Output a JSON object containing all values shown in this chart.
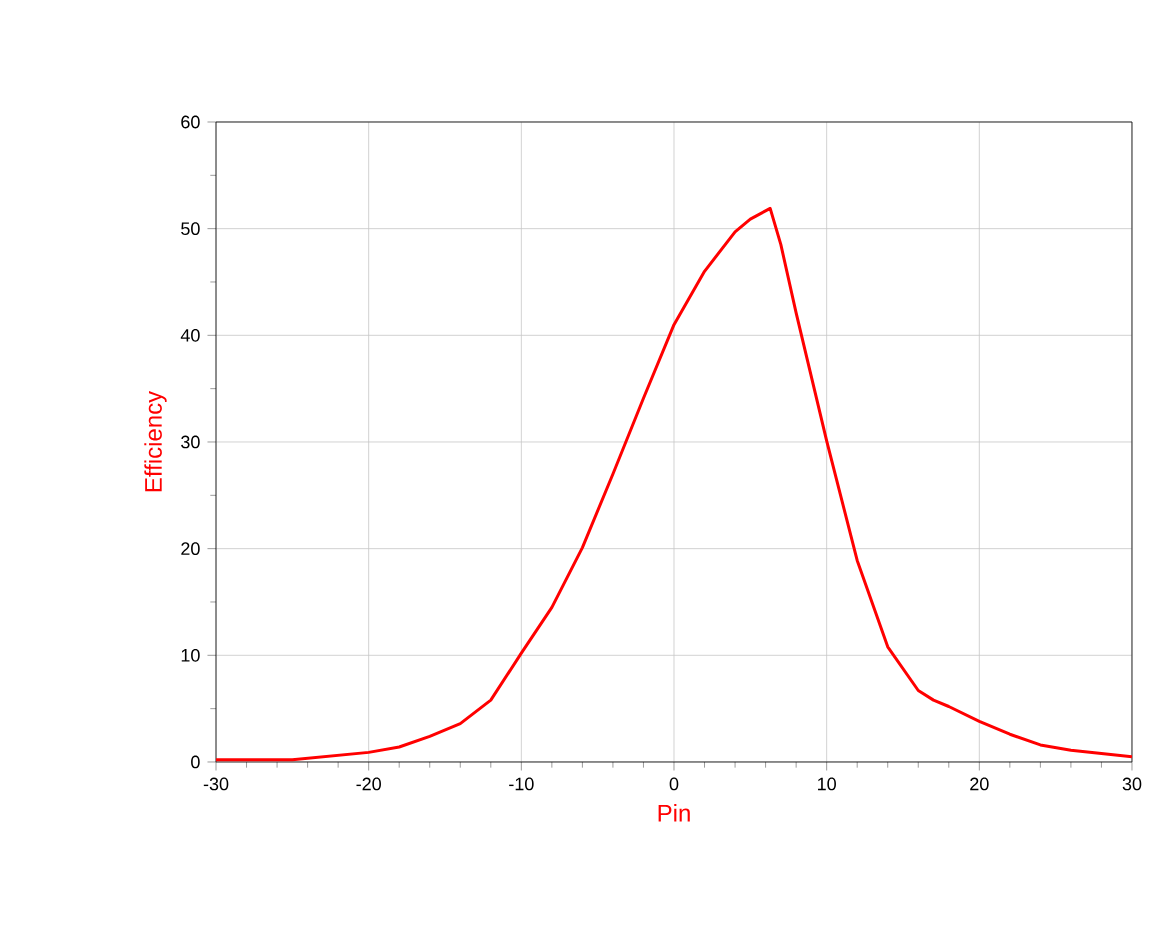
{
  "chart_data": {
    "type": "line",
    "xlabel": "Pin",
    "ylabel": "Efficiency",
    "xlim": [
      -30,
      30
    ],
    "ylim": [
      0,
      60
    ],
    "xticks": [
      -30,
      -20,
      -10,
      0,
      10,
      20,
      30
    ],
    "yticks": [
      0,
      10,
      20,
      30,
      40,
      50,
      60
    ],
    "grid": true,
    "x": [
      -30,
      -25,
      -20,
      -18,
      -16,
      -14,
      -12,
      -10,
      -8,
      -6,
      -4,
      -2,
      0,
      2,
      4,
      5,
      6.3,
      7,
      8,
      10,
      12,
      14,
      16,
      17,
      18,
      20,
      22,
      24,
      26,
      28,
      30
    ],
    "series": [
      {
        "color": "#ff0000",
        "values": [
          0.2,
          0.2,
          0.9,
          1.4,
          2.4,
          3.6,
          5.8,
          10.2,
          14.5,
          20.1,
          27,
          34.1,
          41,
          46,
          49.7,
          50.9,
          51.9,
          48.5,
          42.1,
          30.1,
          18.9,
          10.8,
          6.7,
          5.8,
          5.2,
          3.8,
          2.6,
          1.6,
          1.1,
          0.8,
          0.5
        ]
      }
    ]
  }
}
